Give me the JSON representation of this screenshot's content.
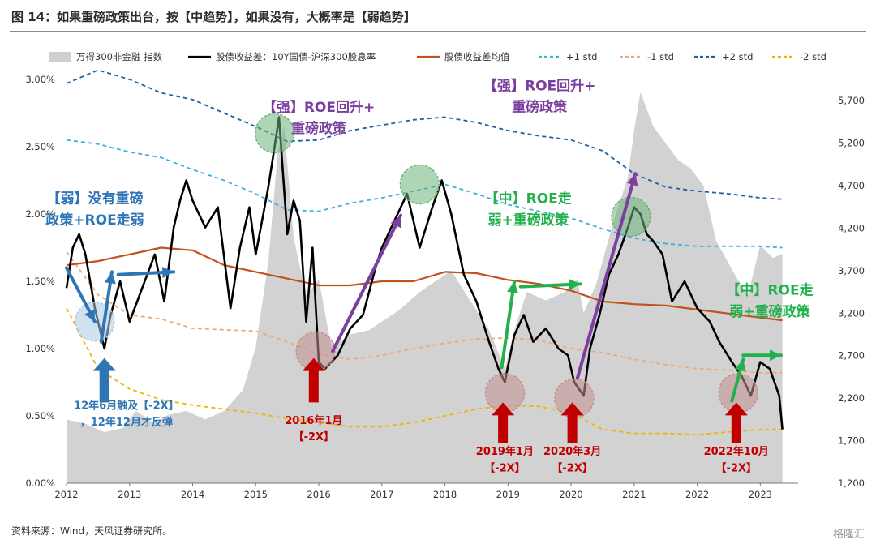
{
  "header": {
    "title": "图 14：如果重磅政策出台，按【中趋势】，如果没有，大概率是【弱趋势】"
  },
  "footer": {
    "source": "资料来源：Wind，天风证券研究所。",
    "watermark": "格隆汇"
  },
  "chart_data": {
    "type": "line",
    "x_ticks": [
      "2012",
      "2013",
      "2014",
      "2015",
      "2016",
      "2017",
      "2018",
      "2019",
      "2020",
      "2021",
      "2022",
      "2023"
    ],
    "y_left": {
      "ticks": [
        "0.00%",
        "0.50%",
        "1.00%",
        "1.50%",
        "2.00%",
        "2.50%",
        "3.00%"
      ],
      "range": [
        0,
        3.0
      ]
    },
    "y_right": {
      "ticks": [
        "1,200",
        "1,700",
        "2,200",
        "2,700",
        "3,200",
        "3,700",
        "4,200",
        "4,700",
        "5,200",
        "5,700"
      ],
      "range": [
        1200,
        5950
      ]
    },
    "legend": [
      {
        "label": "万得300非金融 指数",
        "style": "area",
        "color": "#cfcfcf"
      },
      {
        "label": "股债收益差：10Y国债-沪深300股息率",
        "style": "solid",
        "color": "#000000"
      },
      {
        "label": "股债收益差均值",
        "style": "solid",
        "color": "#c0541c"
      },
      {
        "label": "+1 std",
        "style": "dash",
        "color": "#3bb0e0"
      },
      {
        "label": "-1 std",
        "style": "dash",
        "color": "#f0a878"
      },
      {
        "label": "+2 std",
        "style": "dash",
        "color": "#1a5fa8"
      },
      {
        "label": "-2 std",
        "style": "dash",
        "color": "#f0b400"
      }
    ],
    "series": [
      {
        "name": "万得300非金融 指数",
        "axis": "right",
        "color": "#d2d2d2",
        "x": [
          2012.0,
          2012.3,
          2012.6,
          2012.9,
          2013.1,
          2013.4,
          2013.6,
          2013.9,
          2014.2,
          2014.5,
          2014.8,
          2015.0,
          2015.2,
          2015.35,
          2015.45,
          2015.6,
          2015.8,
          2016.0,
          2016.2,
          2016.5,
          2016.8,
          2017.0,
          2017.3,
          2017.6,
          2017.9,
          2018.1,
          2018.4,
          2018.7,
          2018.95,
          2019.1,
          2019.3,
          2019.6,
          2019.9,
          2020.1,
          2020.2,
          2020.4,
          2020.7,
          2020.9,
          2021.0,
          2021.1,
          2021.3,
          2021.5,
          2021.7,
          2021.9,
          2022.1,
          2022.3,
          2022.6,
          2022.8,
          2023.0,
          2023.2,
          2023.35
        ],
        "values": [
          1950,
          1900,
          1800,
          1850,
          2050,
          1900,
          2000,
          2050,
          1950,
          2050,
          2300,
          2800,
          3800,
          5100,
          5400,
          4100,
          3400,
          3600,
          2800,
          2950,
          3000,
          3100,
          3250,
          3450,
          3600,
          3700,
          3350,
          3000,
          2550,
          3000,
          3450,
          3350,
          3450,
          3600,
          3200,
          3550,
          4350,
          4800,
          5350,
          5800,
          5400,
          5200,
          5000,
          4900,
          4700,
          4050,
          3650,
          3400,
          4000,
          3850,
          3900
        ]
      },
      {
        "name": "股债收益差：10Y国债-沪深300股息率",
        "axis": "left",
        "color": "#000000",
        "x": [
          2012.0,
          2012.1,
          2012.2,
          2012.3,
          2012.45,
          2012.6,
          2012.7,
          2012.85,
          2013.0,
          2013.2,
          2013.4,
          2013.55,
          2013.7,
          2013.8,
          2013.9,
          2014.0,
          2014.2,
          2014.4,
          2014.6,
          2014.75,
          2014.9,
          2015.0,
          2015.1,
          2015.2,
          2015.3,
          2015.37,
          2015.5,
          2015.6,
          2015.7,
          2015.8,
          2015.9,
          2016.0,
          2016.1,
          2016.3,
          2016.5,
          2016.7,
          2016.9,
          2017.0,
          2017.2,
          2017.4,
          2017.6,
          2017.8,
          2017.95,
          2018.1,
          2018.3,
          2018.5,
          2018.7,
          2018.85,
          2018.95,
          2019.1,
          2019.25,
          2019.4,
          2019.6,
          2019.8,
          2019.95,
          2020.05,
          2020.2,
          2020.3,
          2020.45,
          2020.6,
          2020.75,
          2020.9,
          2021.0,
          2021.1,
          2021.2,
          2021.3,
          2021.45,
          2021.6,
          2021.8,
          2022.0,
          2022.2,
          2022.35,
          2022.55,
          2022.7,
          2022.85,
          2023.0,
          2023.15,
          2023.3,
          2023.35
        ],
        "values": [
          1.45,
          1.75,
          1.85,
          1.7,
          1.3,
          1.0,
          1.25,
          1.5,
          1.2,
          1.45,
          1.7,
          1.35,
          1.9,
          2.1,
          2.25,
          2.1,
          1.9,
          2.05,
          1.3,
          1.75,
          2.05,
          1.7,
          1.95,
          2.2,
          2.5,
          2.72,
          1.85,
          2.1,
          1.95,
          1.2,
          1.75,
          0.9,
          0.85,
          0.95,
          1.15,
          1.25,
          1.6,
          1.75,
          1.95,
          2.15,
          1.75,
          2.05,
          2.25,
          2.0,
          1.55,
          1.35,
          1.05,
          0.85,
          0.75,
          1.1,
          1.25,
          1.05,
          1.15,
          1.0,
          0.95,
          0.75,
          0.65,
          1.0,
          1.25,
          1.55,
          1.7,
          1.9,
          2.05,
          2.0,
          1.85,
          1.8,
          1.7,
          1.35,
          1.5,
          1.3,
          1.2,
          1.05,
          0.9,
          0.8,
          0.65,
          0.9,
          0.85,
          0.65,
          0.4
        ]
      },
      {
        "name": "股债收益差均值",
        "axis": "left",
        "color": "#c0541c",
        "x": [
          2012.0,
          2012.5,
          2013.0,
          2013.5,
          2014.0,
          2014.5,
          2015.0,
          2015.5,
          2016.0,
          2016.5,
          2017.0,
          2017.5,
          2018.0,
          2018.5,
          2019.0,
          2019.5,
          2020.0,
          2020.5,
          2021.0,
          2021.5,
          2022.0,
          2022.5,
          2023.0,
          2023.35
        ],
        "values": [
          1.62,
          1.65,
          1.7,
          1.75,
          1.73,
          1.62,
          1.57,
          1.52,
          1.47,
          1.47,
          1.5,
          1.5,
          1.57,
          1.56,
          1.51,
          1.48,
          1.43,
          1.35,
          1.33,
          1.32,
          1.29,
          1.26,
          1.23,
          1.21
        ]
      },
      {
        "name": "+1 std",
        "axis": "left",
        "color": "#3bb0e0",
        "x": [
          2012.0,
          2012.5,
          2013.0,
          2013.5,
          2014.0,
          2014.5,
          2015.0,
          2015.5,
          2016.0,
          2016.5,
          2017.0,
          2017.5,
          2018.0,
          2018.5,
          2019.0,
          2019.5,
          2020.0,
          2020.5,
          2021.0,
          2021.5,
          2022.0,
          2022.5,
          2023.0,
          2023.35
        ],
        "values": [
          2.55,
          2.52,
          2.46,
          2.42,
          2.33,
          2.25,
          2.15,
          2.03,
          2.02,
          2.08,
          2.12,
          2.17,
          2.22,
          2.15,
          2.07,
          2.02,
          1.97,
          1.89,
          1.82,
          1.78,
          1.76,
          1.76,
          1.76,
          1.75
        ]
      },
      {
        "name": "-1 std",
        "axis": "left",
        "color": "#f0a878",
        "x": [
          2012.0,
          2012.5,
          2013.0,
          2013.5,
          2014.0,
          2014.5,
          2015.0,
          2015.5,
          2016.0,
          2016.5,
          2017.0,
          2017.5,
          2018.0,
          2018.5,
          2019.0,
          2019.5,
          2020.0,
          2020.5,
          2021.0,
          2021.5,
          2022.0,
          2022.5,
          2023.0,
          2023.35
        ],
        "values": [
          1.72,
          1.4,
          1.25,
          1.22,
          1.15,
          1.14,
          1.13,
          1.05,
          0.96,
          0.92,
          0.95,
          1.0,
          1.04,
          1.07,
          1.08,
          1.06,
          1.0,
          0.97,
          0.92,
          0.88,
          0.85,
          0.84,
          0.82,
          0.82
        ]
      },
      {
        "name": "+2 std",
        "axis": "left",
        "color": "#1a5fa8",
        "x": [
          2012.0,
          2012.5,
          2013.0,
          2013.5,
          2014.0,
          2014.5,
          2015.0,
          2015.5,
          2016.0,
          2016.5,
          2017.0,
          2017.5,
          2018.0,
          2018.5,
          2019.0,
          2019.5,
          2020.0,
          2020.5,
          2021.0,
          2021.5,
          2022.0,
          2022.5,
          2023.0,
          2023.35
        ],
        "values": [
          2.97,
          3.07,
          3.0,
          2.9,
          2.85,
          2.75,
          2.65,
          2.54,
          2.55,
          2.62,
          2.66,
          2.7,
          2.72,
          2.68,
          2.62,
          2.58,
          2.55,
          2.47,
          2.3,
          2.2,
          2.17,
          2.15,
          2.12,
          2.11
        ]
      },
      {
        "name": "-2 std",
        "axis": "left",
        "color": "#f0b400",
        "x": [
          2012.0,
          2012.5,
          2013.0,
          2013.5,
          2014.0,
          2014.5,
          2015.0,
          2015.5,
          2016.0,
          2016.5,
          2017.0,
          2017.5,
          2018.0,
          2018.5,
          2019.0,
          2019.5,
          2020.0,
          2020.5,
          2021.0,
          2021.5,
          2022.0,
          2022.5,
          2023.0,
          2023.35
        ],
        "values": [
          1.3,
          0.85,
          0.7,
          0.62,
          0.58,
          0.55,
          0.52,
          0.48,
          0.45,
          0.42,
          0.42,
          0.45,
          0.5,
          0.55,
          0.58,
          0.57,
          0.52,
          0.4,
          0.37,
          0.37,
          0.36,
          0.38,
          0.4,
          0.4
        ]
      }
    ],
    "circles": [
      {
        "x": 2012.45,
        "y": 1.2,
        "color": "#a9c9e4"
      },
      {
        "x": 2015.3,
        "y": 2.6,
        "color": "#6ab27a"
      },
      {
        "x": 2015.95,
        "y": 0.98,
        "color": "#c28f8f"
      },
      {
        "x": 2017.6,
        "y": 2.22,
        "color": "#6ab27a"
      },
      {
        "x": 2018.95,
        "y": 0.67,
        "color": "#c28f8f"
      },
      {
        "x": 2020.05,
        "y": 0.63,
        "color": "#c28f8f"
      },
      {
        "x": 2020.95,
        "y": 1.98,
        "color": "#6ab27a"
      },
      {
        "x": 2022.65,
        "y": 0.67,
        "color": "#c28f8f"
      }
    ],
    "arrows": [
      {
        "x1": 2012.0,
        "y1": 1.6,
        "x2": 2012.45,
        "y2": 1.2,
        "color": "#2e75b6"
      },
      {
        "x1": 2012.55,
        "y1": 1.05,
        "x2": 2012.72,
        "y2": 1.57,
        "color": "#2e75b6"
      },
      {
        "x1": 2012.82,
        "y1": 1.55,
        "x2": 2013.7,
        "y2": 1.57,
        "color": "#2e75b6"
      },
      {
        "x1": 2016.22,
        "y1": 0.98,
        "x2": 2017.3,
        "y2": 1.99,
        "color": "#7b3fa0"
      },
      {
        "x1": 2018.9,
        "y1": 0.86,
        "x2": 2019.1,
        "y2": 1.5,
        "color": "#22b14c"
      },
      {
        "x1": 2019.2,
        "y1": 1.46,
        "x2": 2020.15,
        "y2": 1.48,
        "color": "#22b14c"
      },
      {
        "x1": 2020.1,
        "y1": 0.78,
        "x2": 2021.02,
        "y2": 2.3,
        "color": "#7b3fa0"
      },
      {
        "x1": 2022.55,
        "y1": 0.61,
        "x2": 2022.73,
        "y2": 0.92,
        "color": "#22b14c"
      },
      {
        "x1": 2022.73,
        "y1": 0.95,
        "x2": 2023.33,
        "y2": 0.95,
        "color": "#22b14c"
      }
    ],
    "up_arrows": [
      {
        "x": 2012.6,
        "bottom": 0.6,
        "top": 0.93,
        "color": "#2e75b6"
      },
      {
        "x": 2015.92,
        "bottom": 0.6,
        "top": 0.93,
        "color": "#c00000"
      },
      {
        "x": 2018.92,
        "bottom": 0.3,
        "top": 0.6,
        "color": "#c00000"
      },
      {
        "x": 2020.02,
        "bottom": 0.3,
        "top": 0.6,
        "color": "#c00000"
      },
      {
        "x": 2022.62,
        "bottom": 0.3,
        "top": 0.6,
        "color": "#c00000"
      }
    ],
    "annotations": [
      {
        "lines": [
          "【弱】没有重磅",
          "政策+ROE走弱"
        ],
        "x": 2012.45,
        "y": 2.08,
        "color": "#2e75b6",
        "size": 17
      },
      {
        "lines": [
          "12年6月触及【-2X】",
          "，12年12月才反弹"
        ],
        "x": 2012.95,
        "y": 0.55,
        "color": "#2e75b6",
        "size": 13
      },
      {
        "lines": [
          "【强】ROE回升+",
          "重磅政策"
        ],
        "x": 2016.0,
        "y": 2.76,
        "color": "#7b3fa0",
        "size": 17
      },
      {
        "lines": [
          "2016年1月",
          "【-2X】"
        ],
        "x": 2015.92,
        "y": 0.44,
        "color": "#c00000",
        "size": 13
      },
      {
        "lines": [
          "【强】ROE回升+",
          "重磅政策"
        ],
        "x": 2019.5,
        "y": 2.92,
        "color": "#7b3fa0",
        "size": 17
      },
      {
        "lines": [
          "【中】ROE走",
          "弱+重磅政策"
        ],
        "x": 2019.32,
        "y": 2.08,
        "color": "#22b14c",
        "size": 17
      },
      {
        "lines": [
          "2019年1月",
          "【-2X】"
        ],
        "x": 2018.95,
        "y": 0.21,
        "color": "#c00000",
        "size": 13
      },
      {
        "lines": [
          "2020年3月",
          "【-2X】"
        ],
        "x": 2020.02,
        "y": 0.21,
        "color": "#c00000",
        "size": 13
      },
      {
        "lines": [
          "【中】ROE走",
          "弱+重磅政策"
        ],
        "x": 2023.15,
        "y": 1.4,
        "color": "#22b14c",
        "size": 17
      },
      {
        "lines": [
          "2022年10月",
          "【-2X】"
        ],
        "x": 2022.62,
        "y": 0.21,
        "color": "#c00000",
        "size": 13
      }
    ]
  }
}
